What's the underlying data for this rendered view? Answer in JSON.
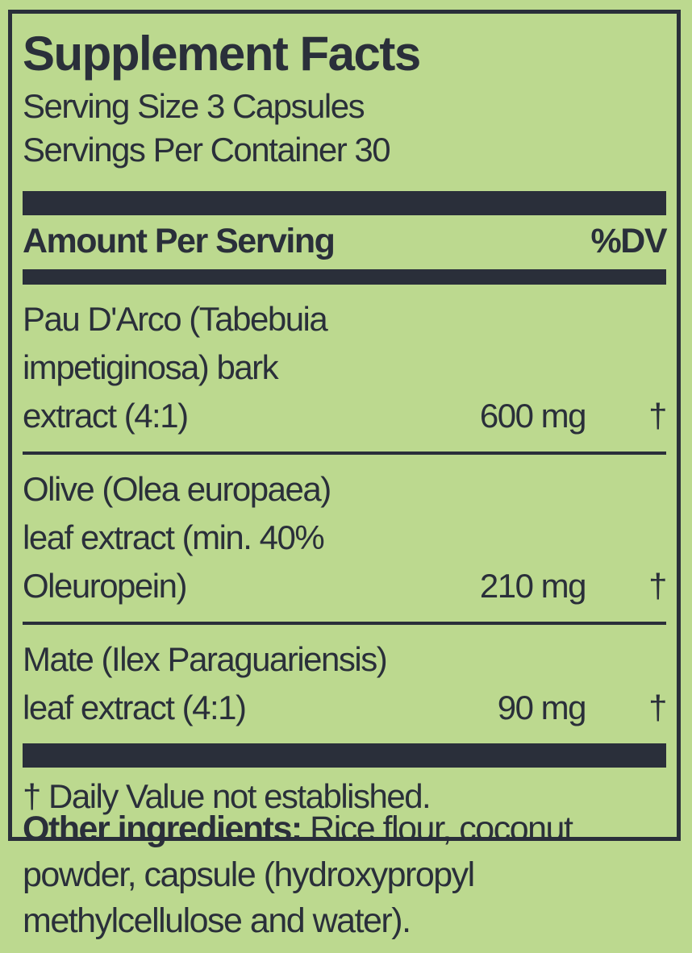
{
  "colors": {
    "background": "#bcd98f",
    "ink": "#2a2f3a"
  },
  "panel": {
    "title": "Supplement Facts",
    "serving_size": "Serving Size 3 Capsules",
    "servings_per_container": "Servings Per Container 30",
    "column_headers": {
      "amount": "Amount Per Serving",
      "dv": "%DV"
    },
    "rows": [
      {
        "name": "Pau D'Arco (Tabebuia\nimpetiginosa) bark\nextract (4:1)",
        "amount": "600 mg",
        "dv": "†"
      },
      {
        "name": "Olive (Olea europaea)\nleaf extract (min. 40%\nOleuropein)",
        "amount": "210 mg",
        "dv": "†"
      },
      {
        "name": "Mate (Ilex Paraguariensis)\nleaf extract (4:1)",
        "amount": "90 mg",
        "dv": "†"
      }
    ],
    "footnote": "† Daily Value not established."
  },
  "other_ingredients": {
    "label": "Other ingredients:",
    "text": " Rice flour, coconut powder, capsule (hydroxypropyl methylcellulose and water)."
  }
}
